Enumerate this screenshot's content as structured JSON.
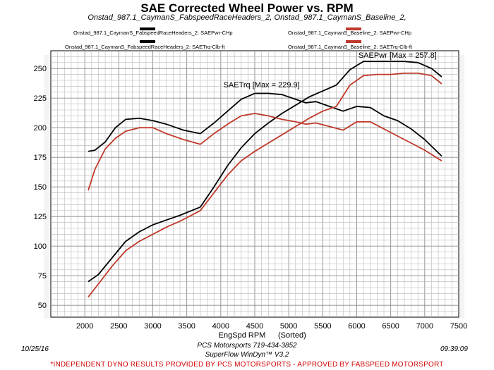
{
  "chart_data": {
    "type": "line",
    "title": "SAE Corrected Wheel Power vs. RPM",
    "subtitle": "Onstad_987.1_CaymanS_FabspeedRaceHeaders_2, Onstad_987.1_CaymanS_Baseline_2,",
    "xlabel": "EngSpd RPM",
    "xlabel_note": "(Sorted)",
    "xlim": [
      1500,
      7500
    ],
    "ylim": [
      40,
      265
    ],
    "xticks": [
      "2000",
      "2500",
      "3000",
      "3500",
      "4000",
      "4500",
      "5000",
      "5500",
      "6000",
      "6500",
      "7000",
      "7500"
    ],
    "yticks": [
      "50",
      "75",
      "100",
      "125",
      "150",
      "175",
      "200",
      "225",
      "250"
    ],
    "grid": true,
    "legend": [
      {
        "label": "Onstad_987.1_CaymanS_FabspeedRaceHeaders_2: SAEPwr-CHp",
        "color": "#000000"
      },
      {
        "label": "Onstad_987.1_CaymanS_FabspeedRaceHeaders_2: SAETrq-Clb-ft",
        "color": "#000000"
      },
      {
        "label": "Onstad_987.1_CaymanS_Baseline_2: SAEPwr-CHp",
        "color": "#c0392b"
      },
      {
        "label": "Onstad_987.1_CaymanS_Baseline_2: SAETrq-Clb-ft",
        "color": "#c0392b"
      }
    ],
    "annotations": [
      {
        "text": "SAETrq [Max = 229.9]",
        "x": 4600,
        "y": 234
      },
      {
        "text": "SAEPwr [Max = 257.8]",
        "x": 6600,
        "y": 259
      }
    ],
    "series": [
      {
        "name": "Onstad_987.1_CaymanS_FabspeedRaceHeaders_2: SAEPwr-CHp",
        "color": "#000000",
        "x": [
          2050,
          2200,
          2400,
          2600,
          2800,
          3000,
          3200,
          3400,
          3700,
          3900,
          4100,
          4300,
          4500,
          4700,
          4900,
          5100,
          5300,
          5500,
          5700,
          5900,
          6100,
          6300,
          6500,
          6700,
          6900,
          7100,
          7250
        ],
        "y": [
          70,
          76,
          90,
          104,
          112,
          118,
          122,
          126,
          133,
          150,
          168,
          183,
          195,
          204,
          212,
          219,
          226,
          231,
          236,
          249,
          256,
          256,
          256,
          256,
          255,
          250,
          243
        ]
      },
      {
        "name": "Onstad_987.1_CaymanS_FabspeedRaceHeaders_2: SAETrq-Clb-ft",
        "color": "#000000",
        "x": [
          2050,
          2150,
          2300,
          2450,
          2600,
          2800,
          3000,
          3200,
          3450,
          3700,
          3900,
          4100,
          4300,
          4500,
          4700,
          4900,
          5100,
          5250,
          5400,
          5600,
          5800,
          6000,
          6200,
          6400,
          6600,
          6800,
          7000,
          7250
        ],
        "y": [
          180,
          181,
          188,
          200,
          207,
          208,
          206,
          203,
          198,
          195,
          204,
          214,
          224,
          229,
          229,
          228,
          224,
          221,
          222,
          218,
          214,
          218,
          217,
          210,
          206,
          199,
          190,
          176
        ]
      },
      {
        "name": "Onstad_987.1_CaymanS_Baseline_2: SAEPwr-CHp",
        "color": "#c0392b",
        "x": [
          2050,
          2200,
          2400,
          2600,
          2800,
          3000,
          3200,
          3400,
          3700,
          3900,
          4100,
          4300,
          4500,
          4700,
          4900,
          5100,
          5300,
          5500,
          5700,
          5900,
          6100,
          6300,
          6500,
          6700,
          6900,
          7100,
          7250
        ],
        "y": [
          57,
          68,
          83,
          96,
          104,
          110,
          116,
          121,
          130,
          145,
          160,
          172,
          180,
          187,
          194,
          201,
          208,
          214,
          218,
          236,
          244,
          245,
          245,
          246,
          246,
          244,
          237
        ]
      },
      {
        "name": "Onstad_987.1_CaymanS_Baseline_2: SAETrq-Clb-ft",
        "color": "#c0392b",
        "x": [
          2050,
          2150,
          2300,
          2450,
          2600,
          2800,
          3000,
          3200,
          3450,
          3700,
          3900,
          4100,
          4300,
          4500,
          4700,
          4900,
          5100,
          5250,
          5400,
          5600,
          5800,
          6000,
          6200,
          6400,
          6600,
          6800,
          7000,
          7250
        ],
        "y": [
          147,
          165,
          182,
          191,
          197,
          200,
          200,
          195,
          190,
          186,
          195,
          203,
          210,
          212,
          210,
          207,
          205,
          203,
          204,
          201,
          198,
          205,
          205,
          199,
          193,
          187,
          181,
          172
        ]
      }
    ]
  },
  "footer": {
    "date": "10/25/16",
    "time": "09:39:09",
    "company": "PCS Motorsports 719-434-3852",
    "software": "SuperFlow WinDyn™ V3.2",
    "disclaimer": "*INDEPENDENT DYNO RESULTS PROVIDED BY PCS MOTORSPORTS - APPROVED BY FABSPEED MOTORSPORT"
  }
}
